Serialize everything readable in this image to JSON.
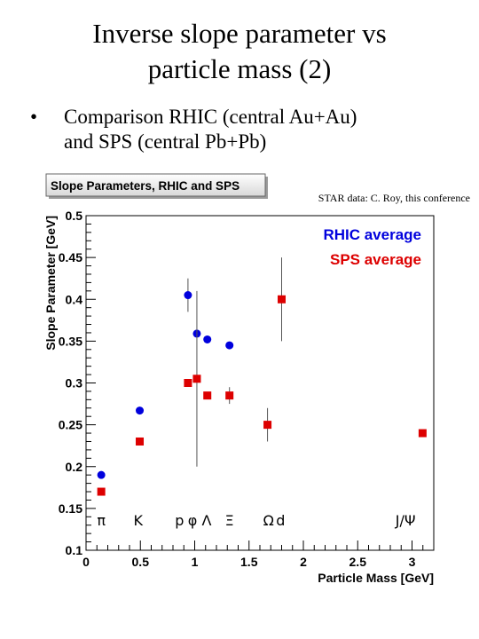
{
  "slide": {
    "title_line1": "Inverse slope parameter vs",
    "title_line2": "particle mass (2)",
    "bullet_symbol": "•",
    "bullet_line1": "Comparison RHIC (central Au+Au)",
    "bullet_line2": "and SPS (central Pb+Pb)"
  },
  "chart_data": {
    "type": "scatter",
    "title": "Slope Parameters, RHIC and SPS",
    "annotation": "STAR data: C. Roy, this conference",
    "xlabel": "Particle Mass [GeV]",
    "ylabel": "Slope Parameter [GeV]",
    "xlim": [
      0,
      3.2
    ],
    "ylim": [
      0.1,
      0.5
    ],
    "x_ticks": [
      "0",
      "0.5",
      "1",
      "1.5",
      "2",
      "2.5",
      "3"
    ],
    "y_ticks": [
      "0.1",
      "0.15",
      "0.2",
      "0.25",
      "0.3",
      "0.35",
      "0.4",
      "0.45",
      "0.5"
    ],
    "grid": false,
    "legend_placement": "top-right",
    "series": [
      {
        "name": "RHIC average",
        "color": "#0000dd",
        "marker": "circle",
        "points": [
          {
            "x": 0.14,
            "y": 0.19
          },
          {
            "x": 0.494,
            "y": 0.267
          },
          {
            "x": 0.938,
            "y": 0.405,
            "err": 0.02
          },
          {
            "x": 1.02,
            "y": 0.359
          },
          {
            "x": 1.116,
            "y": 0.352
          },
          {
            "x": 1.32,
            "y": 0.345
          }
        ]
      },
      {
        "name": "SPS average",
        "color": "#dd0000",
        "marker": "square",
        "points": [
          {
            "x": 0.14,
            "y": 0.17
          },
          {
            "x": 0.494,
            "y": 0.23
          },
          {
            "x": 0.938,
            "y": 0.3
          },
          {
            "x": 1.02,
            "y": 0.305,
            "err": 0.105
          },
          {
            "x": 1.116,
            "y": 0.285
          },
          {
            "x": 1.32,
            "y": 0.285,
            "err": 0.01
          },
          {
            "x": 1.67,
            "y": 0.25,
            "err": 0.02
          },
          {
            "x": 1.8,
            "y": 0.4,
            "err": 0.05
          },
          {
            "x": 3.097,
            "y": 0.24
          }
        ]
      }
    ],
    "particle_labels": [
      {
        "text": "π",
        "x": 0.14
      },
      {
        "text": "K",
        "x": 0.48
      },
      {
        "text": "p",
        "x": 0.86
      },
      {
        "text": "φ",
        "x": 0.98
      },
      {
        "text": "Λ",
        "x": 1.11
      },
      {
        "text": "Ξ",
        "x": 1.32
      },
      {
        "text": "Ω",
        "x": 1.68
      },
      {
        "text": "d",
        "x": 1.79
      },
      {
        "text": "J/Ψ",
        "x": 2.94
      }
    ]
  }
}
